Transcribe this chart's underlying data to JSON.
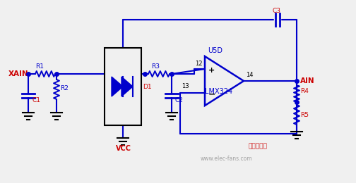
{
  "bg_color": "#f0f0f0",
  "wire_color": "#0000cc",
  "label_color": "#cc0000",
  "black_color": "#000000",
  "comp_color": "#0000cc",
  "watermark": "www.elec-fans.com",
  "components": {
    "XAIN_label": "XAIN",
    "AIN_label": "AIN",
    "R1_label": "R1",
    "R2_label": "R2",
    "C1_label": "C1",
    "D1_label": "D1",
    "R3_label": "R3",
    "C2_label": "C2",
    "C3_label": "C3",
    "R4_label": "R4",
    "R5_label": "R5",
    "U5D_label": "U5D",
    "LMX324_label": "LMX324",
    "VCC_label": "VCC",
    "pin12": "12",
    "pin13": "13",
    "pin14": "14"
  }
}
